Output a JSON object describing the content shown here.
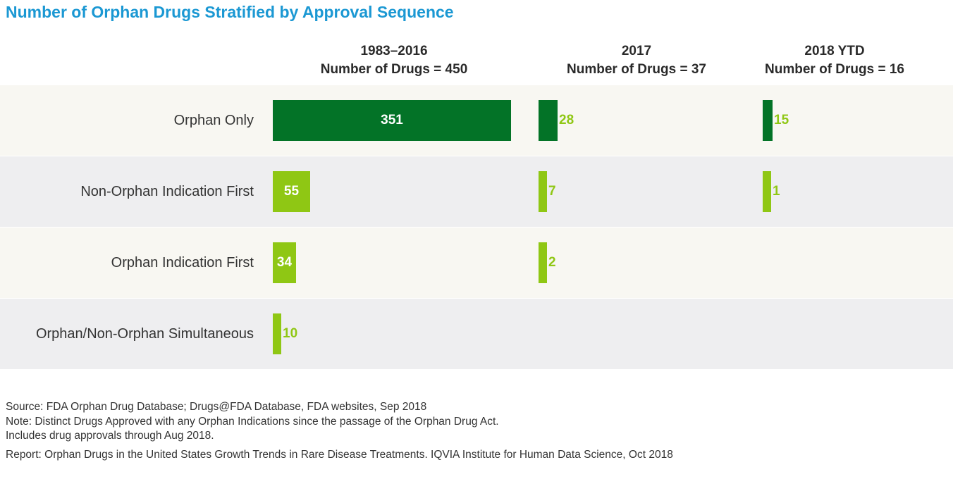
{
  "chart_data": {
    "type": "bar",
    "orientation": "horizontal",
    "title": "Number of Orphan Drugs Stratified by Approval Sequence",
    "categories": [
      "Orphan Only",
      "Non-Orphan Indication First",
      "Orphan Indication First",
      "Orphan/Non-Orphan Simultaneous"
    ],
    "series": [
      {
        "name": "1983–2016",
        "subtitle": "Number of Drugs = 450",
        "values": [
          351,
          55,
          34,
          10
        ]
      },
      {
        "name": "2017",
        "subtitle": "Number of Drugs = 37",
        "values": [
          28,
          7,
          2,
          null
        ]
      },
      {
        "name": "2018 YTD",
        "subtitle": "Number of Drugs = 16",
        "values": [
          15,
          1,
          null,
          null
        ]
      }
    ]
  },
  "colors": {
    "title": "#1b98d3",
    "dark_bar": "#037327",
    "light_bar": "#8fc714",
    "band_light": "#f8f7f2",
    "band_shaded": "#eeeef0",
    "white_text": "#ffffff"
  },
  "footnotes": {
    "source": "Source: FDA Orphan Drug Database; Drugs@FDA Database, FDA websites, Sep 2018",
    "note": "Note: Distinct Drugs Approved with any Orphan Indications since the passage of the Orphan Drug Act.",
    "includes": "Includes drug approvals through Aug 2018.",
    "report": "Report: Orphan Drugs in the United States Growth Trends in Rare Disease Treatments. IQVIA Institute for Human Data Science, Oct 2018"
  }
}
